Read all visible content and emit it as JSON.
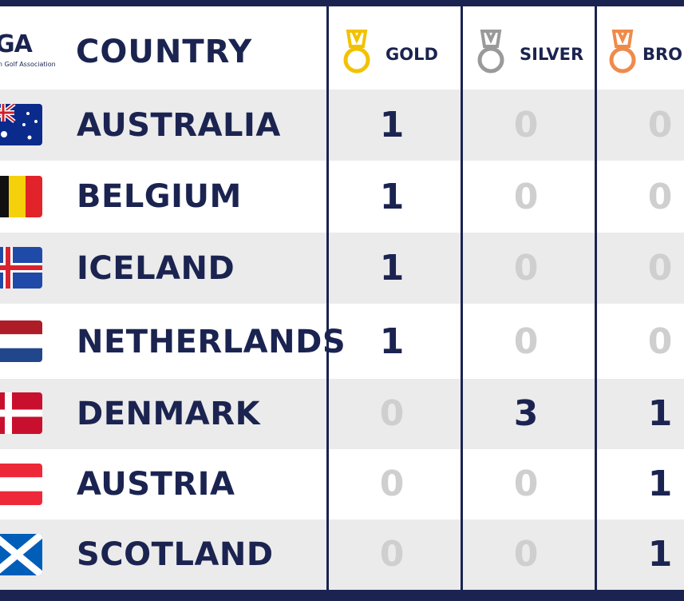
{
  "logo": {
    "mark": "GA",
    "subtitle": "an Golf Association"
  },
  "header": {
    "country": "COUNTRY",
    "gold": "GOLD",
    "silver": "SILVER",
    "bronze": "BRO"
  },
  "colors": {
    "navy": "#1b2450",
    "gold": "#f2c200",
    "silver": "#9a9a9a",
    "bronze": "#f08a4b",
    "zero": "#cfcfcf",
    "row_shade": "#ebebeb"
  },
  "rows": [
    {
      "country": "AUSTRALIA",
      "flag": "australia-flag",
      "gold": "1",
      "silver": "0",
      "bronze": "0"
    },
    {
      "country": "BELGIUM",
      "flag": "belgium-flag",
      "gold": "1",
      "silver": "0",
      "bronze": "0"
    },
    {
      "country": "ICELAND",
      "flag": "iceland-flag",
      "gold": "1",
      "silver": "0",
      "bronze": "0"
    },
    {
      "country": "NETHERLANDS",
      "flag": "netherlands-flag",
      "gold": "1",
      "silver": "0",
      "bronze": "0"
    },
    {
      "country": "DENMARK",
      "flag": "denmark-flag",
      "gold": "0",
      "silver": "3",
      "bronze": "1"
    },
    {
      "country": "AUSTRIA",
      "flag": "austria-flag",
      "gold": "0",
      "silver": "0",
      "bronze": "1"
    },
    {
      "country": "SCOTLAND",
      "flag": "scotland-flag",
      "gold": "0",
      "silver": "0",
      "bronze": "1"
    }
  ]
}
